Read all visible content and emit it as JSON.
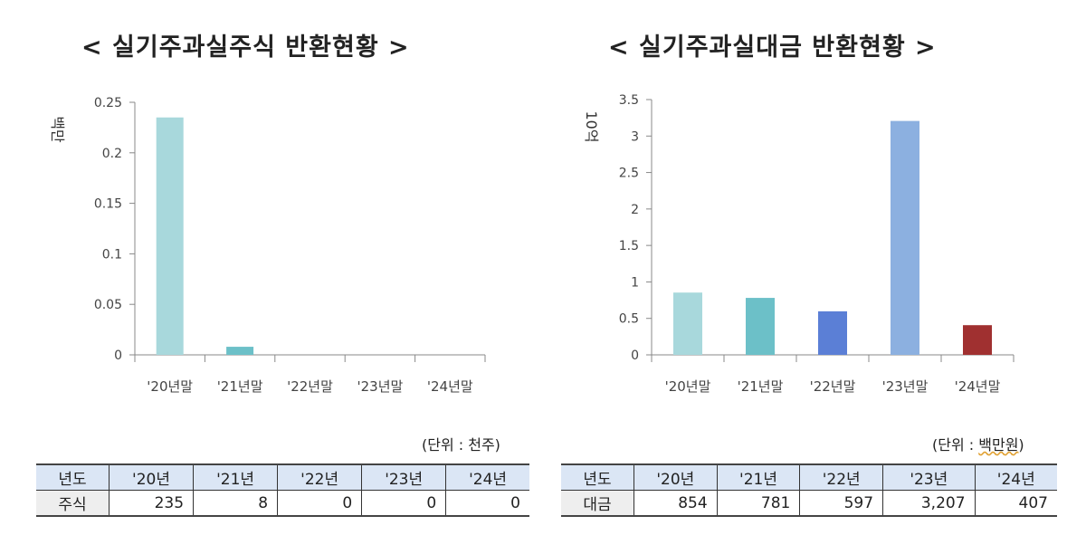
{
  "chart_data": [
    {
      "type": "bar",
      "title": "< 실기주과실주식 반환현황 >",
      "ylabel": "백만",
      "categories": [
        "'20년말",
        "'21년말",
        "'22년말",
        "'23년말",
        "'24년말"
      ],
      "values": [
        0.235,
        0.008,
        0,
        0,
        0
      ],
      "ylim": [
        0,
        0.25
      ],
      "yticks": [
        "0",
        "0.05",
        "0.1",
        "0.15",
        "0.2",
        "0.25"
      ],
      "colors": [
        "#a8d8dc",
        "#6cc0c8",
        "#6cc0c8",
        "#6cc0c8",
        "#6cc0c8"
      ],
      "grid": false
    },
    {
      "type": "bar",
      "title": "< 실기주과실대금 반환현황 >",
      "ylabel": "10억",
      "categories": [
        "'20년말",
        "'21년말",
        "'22년말",
        "'23년말",
        "'24년말"
      ],
      "values": [
        0.854,
        0.781,
        0.597,
        3.207,
        0.407
      ],
      "ylim": [
        0,
        3.5
      ],
      "yticks": [
        "0",
        "0.5",
        "1",
        "1.5",
        "2",
        "2.5",
        "3",
        "3.5"
      ],
      "colors": [
        "#a8d8dc",
        "#6cc0c8",
        "#5b7fd6",
        "#8cb0e0",
        "#a03030"
      ],
      "grid": false
    }
  ],
  "tables": [
    {
      "unit": "(단위 : 천주)",
      "header": [
        "년도",
        "'20년",
        "'21년",
        "'22년",
        "'23년",
        "'24년"
      ],
      "row": [
        "주식",
        "235",
        "8",
        "0",
        "0",
        "0"
      ]
    },
    {
      "unit_prefix": "(단위 : ",
      "unit_word": "백만원",
      "unit_suffix": ")",
      "header": [
        "년도",
        "'20년",
        "'21년",
        "'22년",
        "'23년",
        "'24년"
      ],
      "row": [
        "대금",
        "854",
        "781",
        "597",
        "3,207",
        "407"
      ]
    }
  ]
}
